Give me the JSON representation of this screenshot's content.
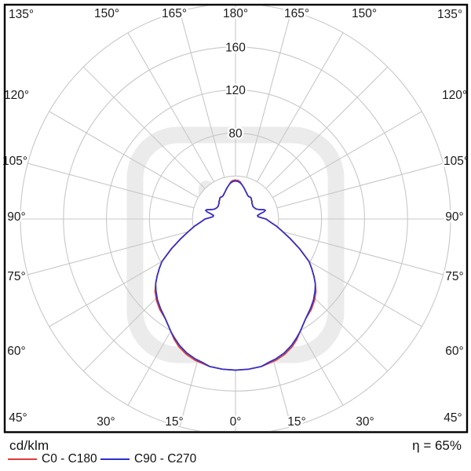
{
  "chart_data": {
    "type": "polar_photometric_curve",
    "description": "Luminous intensity distribution polar diagram of a luminaire",
    "radial_unit": "cd/klm",
    "units_label": "cd/klm",
    "efficiency": "η = 65%",
    "radial_ticks": [
      40,
      80,
      120,
      160,
      200
    ],
    "radial_tick_labels": [
      "80",
      "120",
      "160"
    ],
    "radial_max": 200,
    "angular_step_deg": 15,
    "angle_labels": [
      {
        "deg": 0,
        "text": "0°"
      },
      {
        "deg": 15,
        "text": "15°"
      },
      {
        "deg": 30,
        "text": "30°"
      },
      {
        "deg": 45,
        "text": "45°"
      },
      {
        "deg": 60,
        "text": "60°"
      },
      {
        "deg": 75,
        "text": "75°"
      },
      {
        "deg": 90,
        "text": "90°"
      },
      {
        "deg": 105,
        "text": "105°"
      },
      {
        "deg": 120,
        "text": "120°"
      },
      {
        "deg": 135,
        "text": "135°"
      },
      {
        "deg": 150,
        "text": "150°"
      },
      {
        "deg": 165,
        "text": "165°"
      },
      {
        "deg": 180,
        "text": "180°"
      }
    ],
    "grid": {
      "color": "#c8c8c8",
      "frame_color": "#000000",
      "watermark_color": "#ebebeb",
      "shown": true
    },
    "legend_position": "bottom-left",
    "series": [
      {
        "name": "C0 - C180",
        "color": "#dd3b3b",
        "points_deg_value": [
          [
            0,
            140.5
          ],
          [
            5,
            140.2
          ],
          [
            10,
            139.2
          ],
          [
            13,
            137.8
          ],
          [
            16,
            136.6
          ],
          [
            20,
            133.8
          ],
          [
            24,
            129.8
          ],
          [
            27,
            125.6
          ],
          [
            30,
            120.5
          ],
          [
            35,
            113.5
          ],
          [
            40,
            109.7
          ],
          [
            44,
            105.6
          ],
          [
            48,
            100.7
          ],
          [
            51,
            95.5
          ],
          [
            54,
            90
          ],
          [
            57,
            84.5
          ],
          [
            60,
            79
          ],
          [
            65,
            66
          ],
          [
            70,
            54.5
          ],
          [
            75,
            45.5
          ],
          [
            80,
            38.8
          ],
          [
            85,
            32.5
          ],
          [
            90,
            28.5
          ],
          [
            93,
            24
          ],
          [
            96,
            21
          ],
          [
            99,
            20.8
          ],
          [
            102,
            23.5
          ],
          [
            104,
            27
          ],
          [
            106,
            28.8
          ],
          [
            108,
            28
          ],
          [
            110,
            25.5
          ],
          [
            112,
            23.5
          ],
          [
            115,
            21.8
          ],
          [
            118,
            20.8
          ],
          [
            122,
            20.2
          ],
          [
            126,
            20
          ],
          [
            130,
            20.6
          ],
          [
            134,
            21.2
          ],
          [
            137,
            22.5
          ],
          [
            140,
            23
          ],
          [
            143,
            24.3
          ],
          [
            146,
            24.6
          ],
          [
            149,
            24.2
          ],
          [
            152,
            24.6
          ],
          [
            155,
            25.5
          ],
          [
            158,
            26.6
          ],
          [
            161,
            28
          ],
          [
            164,
            29.6
          ],
          [
            167,
            31.2
          ],
          [
            170,
            32.8
          ],
          [
            173,
            34.9
          ],
          [
            176,
            35.9
          ],
          [
            180,
            36.3
          ]
        ]
      },
      {
        "name": "C90 - C270",
        "color": "#2f2fcc",
        "points_deg_value": [
          [
            0,
            140.5
          ],
          [
            5,
            140.2
          ],
          [
            10,
            139.2
          ],
          [
            13,
            136.8
          ],
          [
            16,
            135.4
          ],
          [
            20,
            132.5
          ],
          [
            24,
            128.4
          ],
          [
            27,
            124.4
          ],
          [
            30,
            120.5
          ],
          [
            35,
            113.5
          ],
          [
            40,
            108.5
          ],
          [
            44,
            104.4
          ],
          [
            48,
            99.5
          ],
          [
            51,
            95.5
          ],
          [
            54,
            90
          ],
          [
            57,
            84.5
          ],
          [
            60,
            79
          ],
          [
            65,
            66
          ],
          [
            70,
            54.5
          ],
          [
            75,
            45.5
          ],
          [
            80,
            38.8
          ],
          [
            85,
            32.5
          ],
          [
            90,
            28.5
          ],
          [
            93,
            24
          ],
          [
            96,
            21
          ],
          [
            99,
            20.8
          ],
          [
            102,
            23.5
          ],
          [
            104,
            27
          ],
          [
            106,
            28.8
          ],
          [
            108,
            28
          ],
          [
            110,
            25.5
          ],
          [
            112,
            23.5
          ],
          [
            115,
            21.8
          ],
          [
            118,
            20.8
          ],
          [
            122,
            20.2
          ],
          [
            126,
            20
          ],
          [
            130,
            20.6
          ],
          [
            134,
            21.2
          ],
          [
            137,
            22.5
          ],
          [
            140,
            23
          ],
          [
            143,
            24.3
          ],
          [
            146,
            24.6
          ],
          [
            149,
            24.2
          ],
          [
            152,
            24.6
          ],
          [
            155,
            25.5
          ],
          [
            158,
            26.6
          ],
          [
            161,
            28
          ],
          [
            164,
            29.6
          ],
          [
            167,
            31.2
          ],
          [
            170,
            32.8
          ],
          [
            173,
            34
          ],
          [
            176,
            34.9
          ],
          [
            180,
            35.3
          ]
        ]
      }
    ]
  }
}
